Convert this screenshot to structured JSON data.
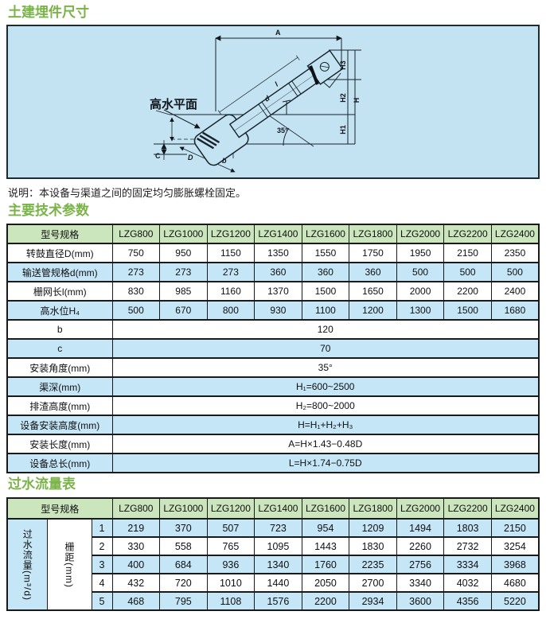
{
  "page": {
    "section1_title": "土建埋件尺寸",
    "note": "说明：本设备与渠道之间的固定均匀膨胀螺栓固定。",
    "section2_title": "主要技术参数",
    "section3_title": "过水流量表"
  },
  "colors": {
    "heading_green": "#7ab347",
    "table_header_green": "#cbe5bd",
    "row_blue": "#c5e6f7",
    "diagram_blue": "#c4e3f2",
    "border_dark": "#1a1a1a"
  },
  "diagram": {
    "water_label": "高水平面",
    "angle_label": "35°",
    "dim_labels": {
      "A": "A",
      "H": "H",
      "H1": "H1",
      "H2": "H2",
      "H3": "H3",
      "C": "C",
      "D": "D",
      "b": "b",
      "l": "l",
      "d": "d"
    }
  },
  "params_table": {
    "header": [
      "型号规格",
      "LZG800",
      "LZG1000",
      "LZG1200",
      "LZG1400",
      "LZG1600",
      "LZG1800",
      "LZG2000",
      "LZG2200",
      "LZG2400"
    ],
    "rows": [
      {
        "label": "转鼓直径D(mm)",
        "values": [
          "750",
          "950",
          "1150",
          "1350",
          "1550",
          "1750",
          "1950",
          "2150",
          "2350"
        ]
      },
      {
        "label": "输送管规格d(mm)",
        "values": [
          "273",
          "273",
          "273",
          "360",
          "360",
          "360",
          "500",
          "500",
          "500"
        ]
      },
      {
        "label": "栅网长l(mm)",
        "values": [
          "830",
          "985",
          "1160",
          "1370",
          "1500",
          "1650",
          "2000",
          "2200",
          "2400"
        ]
      },
      {
        "label": "高水位H₄",
        "values": [
          "500",
          "670",
          "800",
          "930",
          "1100",
          "1200",
          "1300",
          "1500",
          "1680"
        ]
      }
    ],
    "merged_rows": [
      {
        "label": "b",
        "value": "120"
      },
      {
        "label": "c",
        "value": "70"
      },
      {
        "label": "安装角度(mm)",
        "value": "35°"
      },
      {
        "label": "渠深(mm)",
        "value": "H₁=600~2500"
      },
      {
        "label": "排渣高度(mm)",
        "value": "H₂=800~2000"
      },
      {
        "label": "设备安装高度(mm)",
        "value": "H=H₁+H₂+H₃"
      },
      {
        "label": "安装长度(mm)",
        "value": "A=H×1.43−0.48D"
      },
      {
        "label": "设备总长(mm)",
        "value": "L=H×1.74−0.75D"
      }
    ]
  },
  "flow_table": {
    "header": [
      "型号规格",
      "LZG800",
      "LZG1000",
      "LZG1200",
      "LZG1400",
      "LZG1600",
      "LZG1800",
      "LZG2000",
      "LZG2200",
      "LZG2400"
    ],
    "row_group_label": "过水流量(m³/d)",
    "sub_group_label": "栅距(mm)",
    "rows": [
      {
        "no": "1",
        "values": [
          "219",
          "370",
          "507",
          "723",
          "954",
          "1209",
          "1494",
          "1803",
          "2150"
        ]
      },
      {
        "no": "2",
        "values": [
          "330",
          "558",
          "765",
          "1095",
          "1443",
          "1830",
          "2260",
          "2732",
          "3254"
        ]
      },
      {
        "no": "3",
        "values": [
          "400",
          "684",
          "936",
          "1340",
          "1760",
          "2235",
          "2756",
          "3334",
          "3968"
        ]
      },
      {
        "no": "4",
        "values": [
          "432",
          "720",
          "1010",
          "1440",
          "2050",
          "2700",
          "3340",
          "4032",
          "4680"
        ]
      },
      {
        "no": "5",
        "values": [
          "468",
          "795",
          "1108",
          "1576",
          "2200",
          "2934",
          "3600",
          "4356",
          "5220"
        ]
      }
    ]
  }
}
